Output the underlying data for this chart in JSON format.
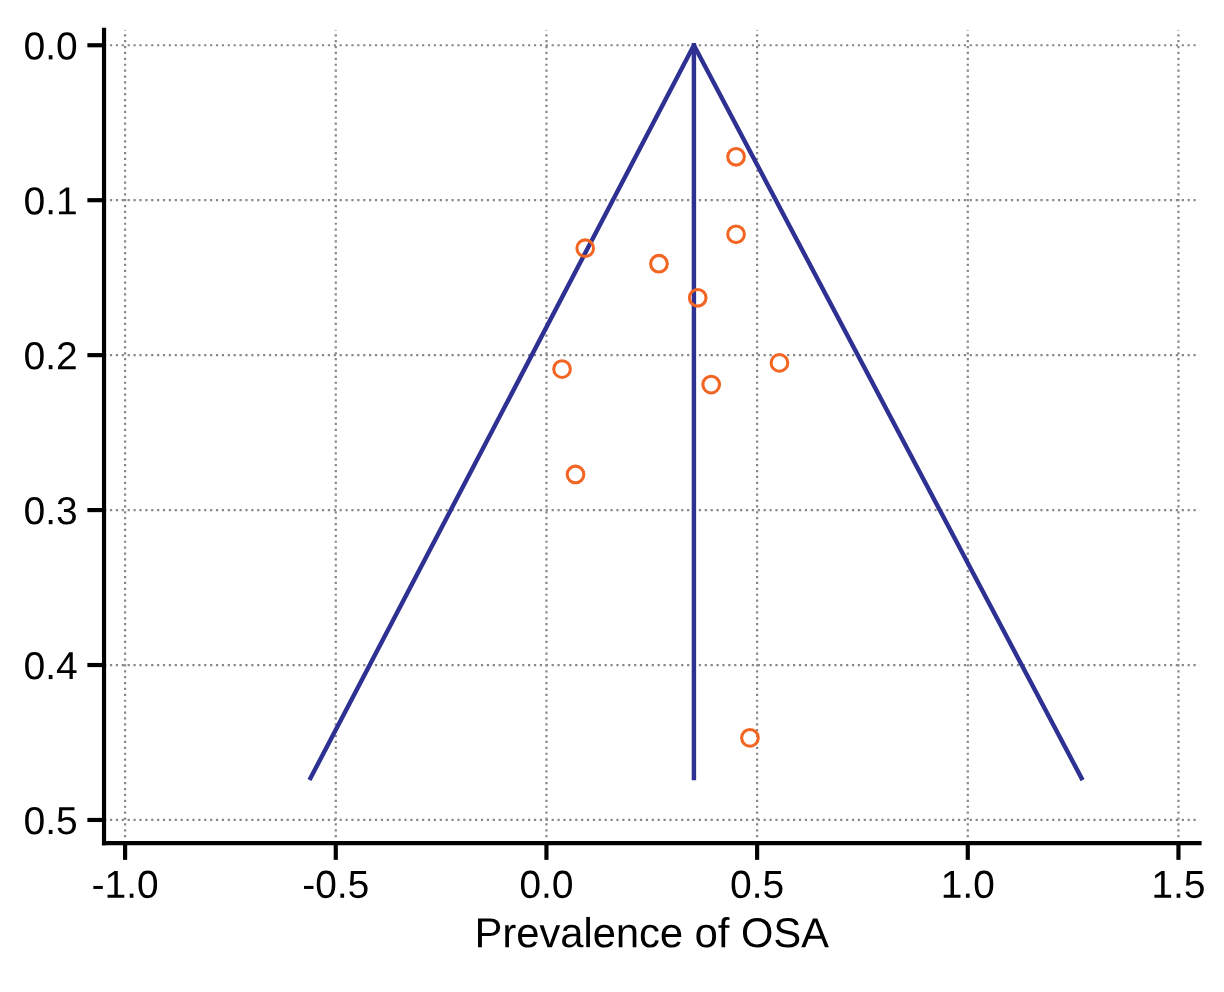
{
  "chart_data": {
    "type": "scatter",
    "xlabel": "Prevalence of OSA",
    "xlim": [
      -1.05,
      1.55
    ],
    "xticks": [
      {
        "value": -1.0,
        "label": "-1.0"
      },
      {
        "value": -0.5,
        "label": "-0.5"
      },
      {
        "value": 0.0,
        "label": "0.0"
      },
      {
        "value": 0.5,
        "label": "0.5"
      },
      {
        "value": 1.0,
        "label": "1.0"
      },
      {
        "value": 1.5,
        "label": "1.5"
      }
    ],
    "ylim": [
      0.515,
      -0.01
    ],
    "yticks": [
      {
        "value": 0.0,
        "label": "0.0"
      },
      0.1,
      0.2,
      0.3,
      0.4,
      0.5
    ],
    "grid": true,
    "series": [
      {
        "type": "line",
        "color": "#2e3192",
        "x": [
          -0.56,
          0.35,
          1.27
        ],
        "values": [
          0.473,
          0.0,
          0.473
        ],
        "marker": "none",
        "line_style": "solid"
      },
      {
        "type": "line",
        "color": "#2e3192",
        "x": [
          0.35,
          0.35
        ],
        "values": [
          0.0,
          0.473
        ],
        "marker": "none",
        "line_style": "solid"
      },
      {
        "color": "#f26522",
        "marker": "circle",
        "x": [
          0.45,
          0.45,
          0.092,
          0.267,
          0.359,
          0.553,
          0.037,
          0.391,
          0.069,
          0.483
        ],
        "values": [
          0.072,
          0.122,
          0.131,
          0.141,
          0.163,
          0.205,
          0.209,
          0.219,
          0.277,
          0.447
        ]
      }
    ]
  }
}
